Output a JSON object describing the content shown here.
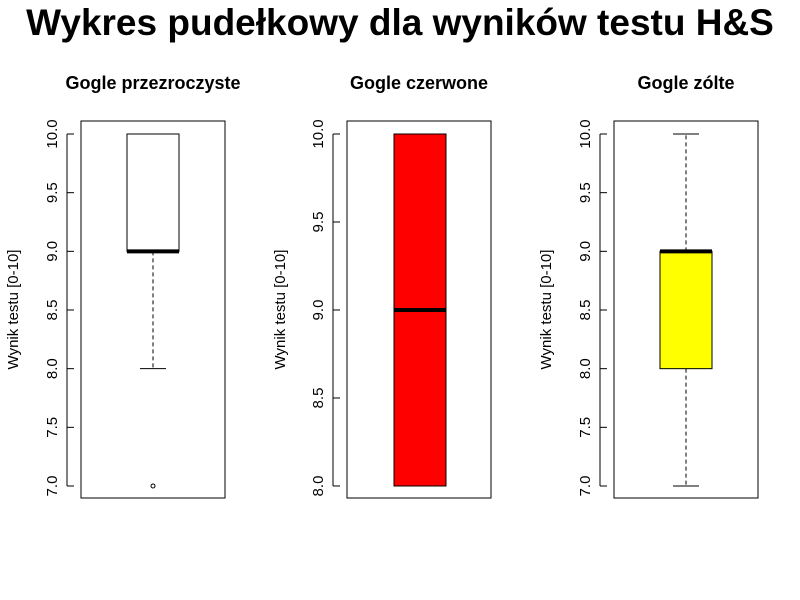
{
  "page": {
    "title": "Wykres pudełkowy dla wyników testu H&S"
  },
  "chart_data": [
    {
      "type": "boxplot",
      "title": "Gogle przezroczyste",
      "ylabel": "Wynik testu [0-10]",
      "ylim": [
        7.0,
        10.0
      ],
      "yticks": [
        "7.0",
        "7.5",
        "8.0",
        "8.5",
        "9.0",
        "9.5",
        "10.0"
      ],
      "fill": "#ffffff",
      "stats": {
        "whisker_low": 8.0,
        "q1": 9.0,
        "median": 9.0,
        "q3": 10.0,
        "whisker_high": 10.0
      },
      "outliers": [
        7.0
      ]
    },
    {
      "type": "boxplot",
      "title": "Gogle czerwone",
      "ylabel": "Wynik testu [0-10]",
      "ylim": [
        8.0,
        10.0
      ],
      "yticks": [
        "8.0",
        "8.5",
        "9.0",
        "9.5",
        "10.0"
      ],
      "fill": "#ff0000",
      "stats": {
        "whisker_low": 8.0,
        "q1": 8.0,
        "median": 9.0,
        "q3": 10.0,
        "whisker_high": 10.0
      },
      "outliers": []
    },
    {
      "type": "boxplot",
      "title": "Gogle zólte",
      "ylabel": "Wynik testu [0-10]",
      "ylim": [
        7.0,
        10.0
      ],
      "yticks": [
        "7.0",
        "7.5",
        "8.0",
        "8.5",
        "9.0",
        "9.5",
        "10.0"
      ],
      "fill": "#ffff00",
      "stats": {
        "whisker_low": 7.0,
        "q1": 8.0,
        "median": 9.0,
        "q3": 9.0,
        "whisker_high": 10.0
      },
      "outliers": []
    }
  ]
}
